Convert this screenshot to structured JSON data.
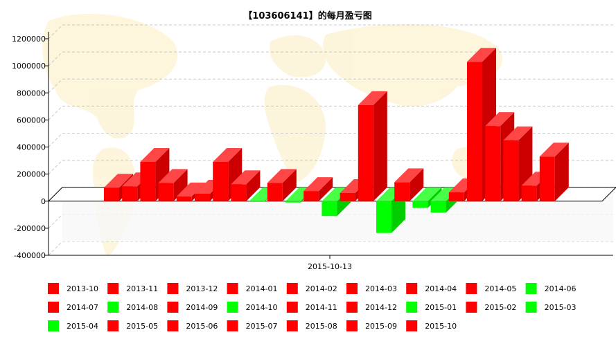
{
  "chart_data": {
    "type": "bar",
    "title": "【103606141】的每月盈亏图",
    "x_category_label": "2015-10-13",
    "ylim": [
      -400000,
      1200000
    ],
    "yticks": [
      "1200000",
      "1000000",
      "800000",
      "600000",
      "400000",
      "200000",
      "0",
      "-200000",
      "-400000"
    ],
    "ytick_values": [
      1200000,
      1000000,
      800000,
      600000,
      400000,
      200000,
      0,
      -200000,
      -400000
    ],
    "grid": true,
    "legend_position": "bottom",
    "positive_color": "#ff0000",
    "negative_color": "#00ff00",
    "series": [
      {
        "name": "2013-10",
        "value": 100000
      },
      {
        "name": "2013-11",
        "value": 110000
      },
      {
        "name": "2013-12",
        "value": 290000
      },
      {
        "name": "2014-01",
        "value": 135000
      },
      {
        "name": "2014-02",
        "value": 35000
      },
      {
        "name": "2014-03",
        "value": 55000
      },
      {
        "name": "2014-04",
        "value": 290000
      },
      {
        "name": "2014-05",
        "value": 125000
      },
      {
        "name": "2014-06",
        "value": -5000
      },
      {
        "name": "2014-07",
        "value": 135000
      },
      {
        "name": "2014-08",
        "value": -10000
      },
      {
        "name": "2014-09",
        "value": 75000
      },
      {
        "name": "2014-10",
        "value": -110000
      },
      {
        "name": "2014-11",
        "value": 60000
      },
      {
        "name": "2014-12",
        "value": 710000
      },
      {
        "name": "2015-01",
        "value": -235000
      },
      {
        "name": "2015-02",
        "value": 140000
      },
      {
        "name": "2015-03",
        "value": -50000
      },
      {
        "name": "2015-04",
        "value": -85000
      },
      {
        "name": "2015-05",
        "value": 65000
      },
      {
        "name": "2015-06",
        "value": 1030000
      },
      {
        "name": "2015-07",
        "value": 555000
      },
      {
        "name": "2015-08",
        "value": 450000
      },
      {
        "name": "2015-09",
        "value": 115000
      },
      {
        "name": "2015-10",
        "value": 330000
      }
    ]
  }
}
